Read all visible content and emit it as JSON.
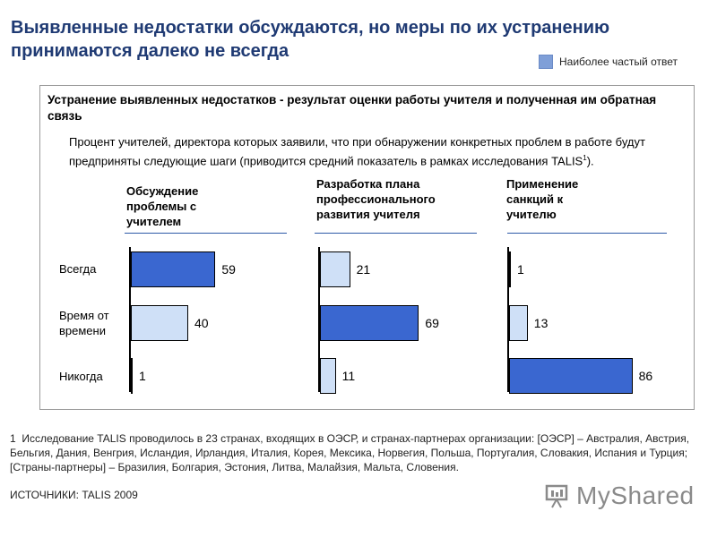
{
  "title": "Выявленные недостатки обсуждаются, но меры по их устранению принимаются далеко не всегда",
  "legend": {
    "label": "Наиболее частый ответ",
    "color": "#7f9fd8"
  },
  "panel": {
    "title": "Устранение выявленных недостатков - результат оценки работы учителя и полученная им обратная связь",
    "subtitle": "Процент учителей, директора которых заявили, что при обнаружении конкретных проблем в работе будут предприняты следующие шаги (приводится средний показатель в рамках исследования TALIS",
    "subtitle_sup": "1",
    "subtitle_end": ")."
  },
  "chart_data": {
    "type": "bar",
    "orientation": "horizontal",
    "categories": [
      "Всегда",
      "Время от времени",
      "Никогда"
    ],
    "category_labels": [
      "Всегда",
      "Время от\nвремени",
      "Никогда"
    ],
    "series": [
      {
        "name": "Обсуждение проблемы с учителем",
        "values": [
          59,
          40,
          1
        ],
        "highlight_index": 0
      },
      {
        "name": "Разработка плана профессионального развития учителя",
        "values": [
          21,
          69,
          11
        ],
        "highlight_index": 1
      },
      {
        "name": "Применение санкций к учителю",
        "values": [
          1,
          13,
          86
        ],
        "highlight_index": 2
      }
    ],
    "xlim": [
      0,
      100
    ],
    "colors": {
      "highlight": "#3a67d0",
      "normal": "#cfe0f7"
    }
  },
  "footnote": {
    "number": "1",
    "text": "Исследование TALIS проводилось в 23 странах, входящих в ОЭСР, и странах-партнерах организации: [ОЭСР] – Австралия, Австрия, Бельгия, Дания, Венгрия, Исландия, Ирландия, Италия, Корея, Мексика, Норвегия, Польша, Португалия, Словакия, Испания и Турция; [Страны-партнеры] – Бразилия, Болгария, Эстония, Литва, Малайзия, Мальта, Словения."
  },
  "source": "ИСТОЧНИКИ: TALIS 2009",
  "logo": {
    "text": "MyShared",
    "icon": "presentation-board-icon"
  }
}
